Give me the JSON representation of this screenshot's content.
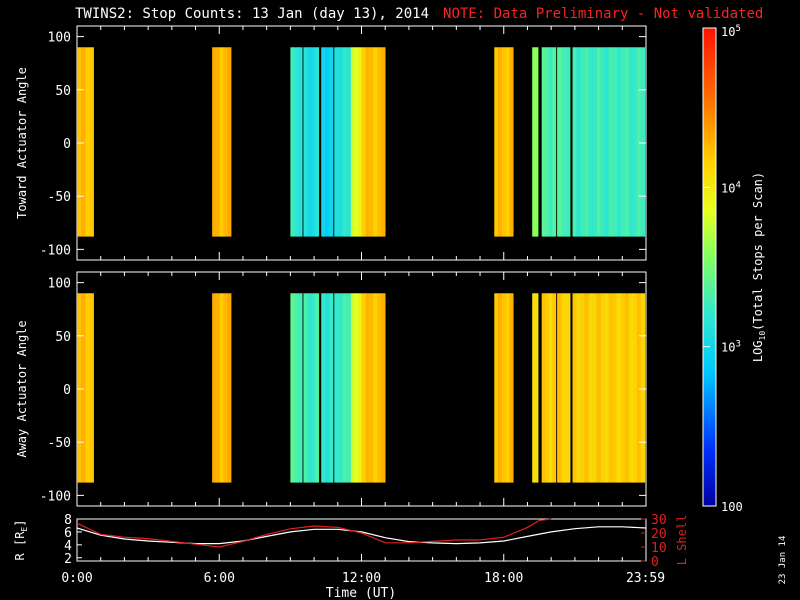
{
  "title": "TWINS2: Stop Counts: 13 Jan (day  13), 2014",
  "note": "NOTE: Data Preliminary - Not validated",
  "date_stamp": "23 Jan 14",
  "colors": {
    "background": "#000000",
    "note": "#ff2020",
    "r_line": "#ffffff",
    "lshell_line": "#e02020"
  },
  "chart_data": [
    {
      "type": "heatmap",
      "name": "toward-panel",
      "ylabel": "Toward Actuator Angle",
      "ylim": [
        -110,
        110
      ],
      "yticks": [
        100,
        50,
        0,
        -50,
        -100
      ],
      "xlim": [
        0,
        24
      ],
      "data_ylim": [
        -88,
        90
      ],
      "blocks": [
        {
          "x0": 0.0,
          "x1": 0.7,
          "level": 0.74
        },
        {
          "x0": 5.7,
          "x1": 6.5,
          "level": 0.75
        },
        {
          "x0": 9.0,
          "x1": 9.5,
          "level": 0.4
        },
        {
          "x0": 9.55,
          "x1": 10.2,
          "level": 0.36
        },
        {
          "x0": 10.3,
          "x1": 10.8,
          "level": 0.32
        },
        {
          "x0": 10.85,
          "x1": 11.55,
          "level": 0.38
        },
        {
          "x0": 11.55,
          "x1": 12.0,
          "level": 0.62
        },
        {
          "x0": 12.0,
          "x1": 13.0,
          "level": 0.74
        },
        {
          "x0": 17.6,
          "x1": 18.4,
          "level": 0.74
        },
        {
          "x0": 19.2,
          "x1": 19.45,
          "level": 0.52
        },
        {
          "x0": 19.6,
          "x1": 20.2,
          "level": 0.44
        },
        {
          "x0": 20.25,
          "x1": 20.8,
          "level": 0.44
        },
        {
          "x0": 20.9,
          "x1": 23.95,
          "level": 0.42
        }
      ]
    },
    {
      "type": "heatmap",
      "name": "away-panel",
      "ylabel": "Away Actuator Angle",
      "ylim": [
        -110,
        110
      ],
      "yticks": [
        100,
        50,
        0,
        -50,
        -100
      ],
      "xlim": [
        0,
        24
      ],
      "data_ylim": [
        -88,
        90
      ],
      "blocks": [
        {
          "x0": 0.0,
          "x1": 0.7,
          "level": 0.74
        },
        {
          "x0": 5.7,
          "x1": 6.5,
          "level": 0.75
        },
        {
          "x0": 9.0,
          "x1": 9.5,
          "level": 0.45
        },
        {
          "x0": 9.55,
          "x1": 10.2,
          "level": 0.42
        },
        {
          "x0": 10.3,
          "x1": 10.8,
          "level": 0.4
        },
        {
          "x0": 10.85,
          "x1": 11.55,
          "level": 0.42
        },
        {
          "x0": 11.55,
          "x1": 12.0,
          "level": 0.62
        },
        {
          "x0": 12.0,
          "x1": 13.0,
          "level": 0.74
        },
        {
          "x0": 17.6,
          "x1": 18.4,
          "level": 0.74
        },
        {
          "x0": 19.2,
          "x1": 19.45,
          "level": 0.68
        },
        {
          "x0": 19.6,
          "x1": 20.2,
          "level": 0.72
        },
        {
          "x0": 20.25,
          "x1": 20.8,
          "level": 0.72
        },
        {
          "x0": 20.9,
          "x1": 23.95,
          "level": 0.72
        }
      ]
    },
    {
      "type": "line",
      "name": "ephemeris-panel",
      "ylabel": "R [R",
      "ylabel_sub": "E",
      "ylabel_end": "]",
      "ylim": [
        1.5,
        8
      ],
      "yticks": [
        8,
        6,
        4,
        2
      ],
      "y2label": "L Shell",
      "y2lim": [
        0,
        30
      ],
      "y2ticks": [
        30,
        20,
        10,
        0
      ],
      "xlabel": "Time (UT)",
      "xlim": [
        0,
        24
      ],
      "xticks": [
        {
          "value": 0,
          "label": "0:00"
        },
        {
          "value": 6,
          "label": "6:00"
        },
        {
          "value": 12,
          "label": "12:00"
        },
        {
          "value": 18,
          "label": "18:00"
        },
        {
          "value": 23.98,
          "label": "23:59"
        }
      ],
      "series": [
        {
          "name": "R",
          "axis": "left",
          "x": [
            0,
            1,
            2,
            3,
            4,
            5,
            6,
            7,
            8,
            9,
            10,
            11,
            12,
            13,
            14,
            15,
            16,
            17,
            18,
            19,
            20,
            21,
            22,
            23,
            24
          ],
          "y": [
            6.6,
            5.5,
            4.9,
            4.6,
            4.4,
            4.2,
            4.2,
            4.6,
            5.3,
            6.0,
            6.4,
            6.4,
            6.0,
            5.1,
            4.5,
            4.3,
            4.2,
            4.3,
            4.6,
            5.3,
            6.0,
            6.5,
            6.8,
            6.8,
            6.6
          ]
        },
        {
          "name": "L Shell",
          "axis": "right",
          "x": [
            0,
            1,
            2,
            3,
            4,
            5,
            6,
            7,
            8,
            9,
            10,
            11,
            12,
            13,
            14,
            15,
            16,
            17,
            18,
            19,
            19.5,
            20
          ],
          "y": [
            27,
            19,
            17,
            16,
            14,
            12,
            10,
            14,
            19,
            23,
            25,
            24,
            20,
            13,
            13,
            14,
            15,
            15,
            17,
            24,
            29,
            30
          ]
        }
      ]
    },
    {
      "type": "heatmap",
      "name": "colorbar",
      "label": "LOG",
      "label_sub": "10",
      "label_end": "(Total Stops per Scan)",
      "scale": "log",
      "range": [
        100,
        100000
      ],
      "ticks": [
        {
          "value": 100,
          "label": "100",
          "exp": ""
        },
        {
          "value": 1000,
          "label": "10",
          "exp": "3"
        },
        {
          "value": 10000,
          "label": "10",
          "exp": "4"
        },
        {
          "value": 100000,
          "label": "10",
          "exp": "5"
        }
      ]
    }
  ]
}
